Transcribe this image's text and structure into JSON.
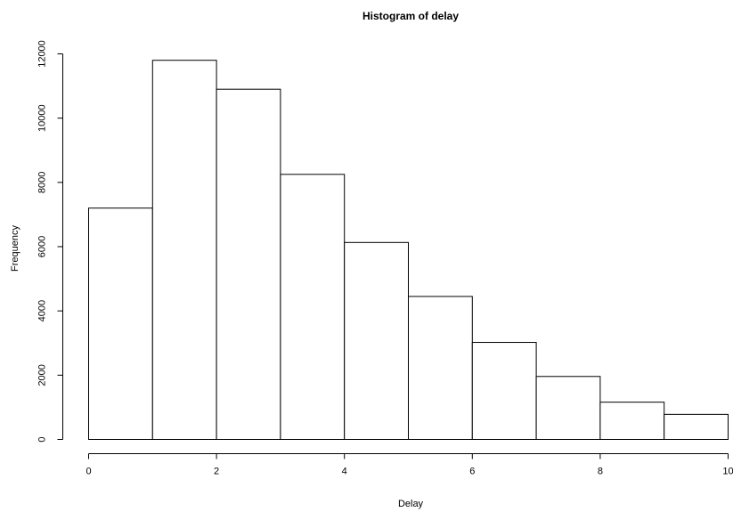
{
  "chart_data": {
    "type": "bar",
    "title": "Histogram of delay",
    "xlabel": "Delay",
    "ylabel": "Frequency",
    "bins": [
      {
        "x0": 0,
        "x1": 1,
        "count": 7200
      },
      {
        "x0": 1,
        "x1": 2,
        "count": 11800
      },
      {
        "x0": 2,
        "x1": 3,
        "count": 10900
      },
      {
        "x0": 3,
        "x1": 4,
        "count": 8250
      },
      {
        "x0": 4,
        "x1": 5,
        "count": 6130
      },
      {
        "x0": 5,
        "x1": 6,
        "count": 4450
      },
      {
        "x0": 6,
        "x1": 7,
        "count": 3020
      },
      {
        "x0": 7,
        "x1": 8,
        "count": 1960
      },
      {
        "x0": 8,
        "x1": 9,
        "count": 1160
      },
      {
        "x0": 9,
        "x1": 10,
        "count": 780
      }
    ],
    "xlim": [
      0,
      10
    ],
    "ylim": [
      0,
      12000
    ],
    "xticks": [
      "0",
      "2",
      "4",
      "6",
      "8",
      "10"
    ],
    "yticks": [
      "0",
      "2000",
      "4000",
      "6000",
      "8000",
      "10000",
      "12000"
    ],
    "grid": false,
    "bar_fill": "#ffffff",
    "bar_stroke": "#000000"
  }
}
